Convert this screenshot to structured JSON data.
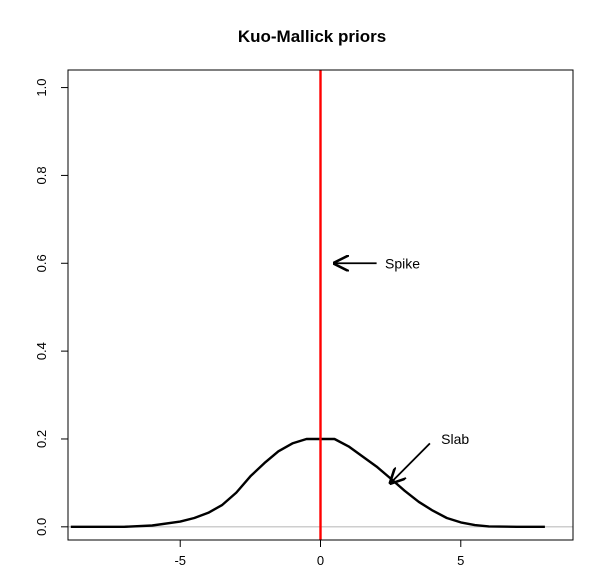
{
  "chart_data": {
    "type": "line",
    "title": "Kuo-Mallick priors",
    "xlabel": "",
    "ylabel": "",
    "xlim": [
      -9,
      9
    ],
    "ylim": [
      -0.03,
      1.04
    ],
    "x_ticks": [
      -5,
      0,
      5
    ],
    "x_tick_labels": [
      "-5",
      "0",
      "5"
    ],
    "y_ticks": [
      0.0,
      0.2,
      0.4,
      0.6,
      0.8,
      1.0
    ],
    "y_tick_labels": [
      "0.0",
      "0.2",
      "0.4",
      "0.6",
      "0.8",
      "1.0"
    ],
    "grid": false,
    "baseline": {
      "y": 0,
      "color": "#bdbdbd"
    },
    "series": [
      {
        "kind": "density",
        "color": "#000000",
        "x": [
          -8.9,
          -7.0,
          -6.0,
          -5.0,
          -4.5,
          -4.0,
          -3.5,
          -3.0,
          -2.5,
          -2.0,
          -1.5,
          -1.0,
          -0.5,
          0.0,
          0.5,
          1.0,
          1.5,
          2.0,
          2.5,
          3.0,
          3.5,
          4.0,
          4.5,
          5.0,
          5.5,
          6.0,
          7.0,
          8.0
        ],
        "y": [
          0.0,
          0.0,
          0.003,
          0.012,
          0.02,
          0.032,
          0.05,
          0.078,
          0.115,
          0.145,
          0.172,
          0.19,
          0.2,
          0.2,
          0.2,
          0.183,
          0.16,
          0.137,
          0.11,
          0.082,
          0.057,
          0.037,
          0.02,
          0.01,
          0.004,
          0.001,
          0.0,
          0.0
        ]
      },
      {
        "kind": "spike",
        "color": "#ff0000",
        "x": [
          0,
          0
        ],
        "y": [
          -0.03,
          1.04
        ]
      }
    ],
    "annotations": [
      {
        "text": "Spike",
        "text_x": 2.3,
        "text_y": 0.6,
        "arrow_from": [
          2.0,
          0.6
        ],
        "arrow_to": [
          0.5,
          0.6
        ]
      },
      {
        "text": "Slab",
        "text_x": 4.3,
        "text_y": 0.2,
        "arrow_from": [
          3.9,
          0.19
        ],
        "arrow_to": [
          2.5,
          0.1
        ]
      }
    ]
  }
}
